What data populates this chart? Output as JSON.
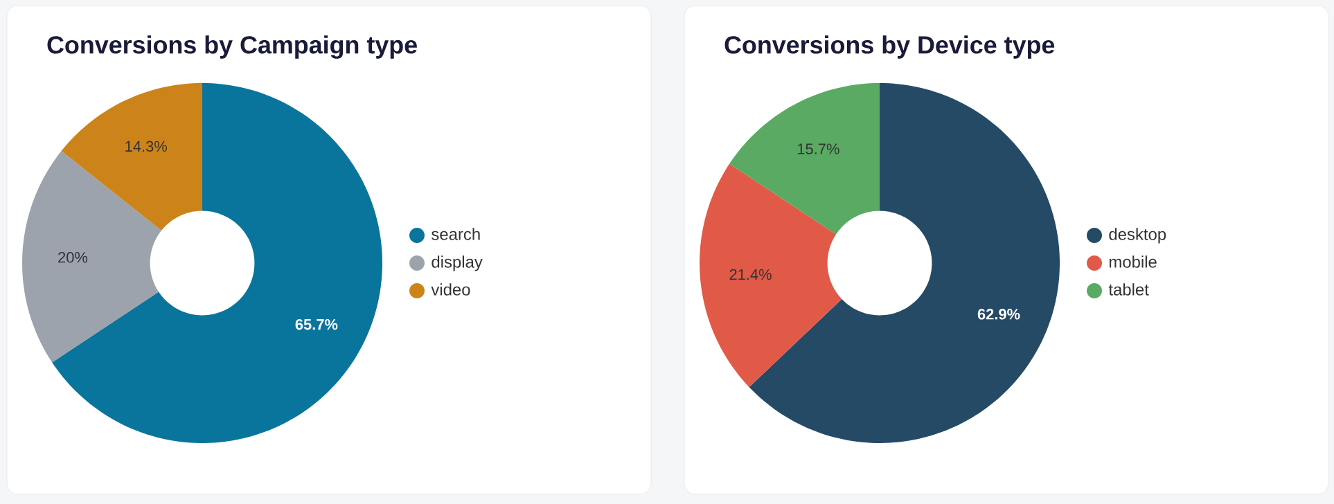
{
  "chart_data": [
    {
      "type": "donut",
      "title": "Conversions by Campaign type",
      "categories": [
        "search",
        "display",
        "video"
      ],
      "values": [
        65.7,
        20,
        14.3
      ],
      "colors": [
        "#0a759c",
        "#9ca3ad",
        "#cc841a"
      ],
      "value_labels": [
        "65.7%",
        "20%",
        "14.3%"
      ],
      "legend": "right"
    },
    {
      "type": "donut",
      "title": "Conversions by Device type",
      "categories": [
        "desktop",
        "mobile",
        "tablet"
      ],
      "values": [
        62.9,
        21.4,
        15.7
      ],
      "colors": [
        "#254a66",
        "#e05a47",
        "#5aaa63"
      ],
      "value_labels": [
        "62.9%",
        "21.4%",
        "15.7%"
      ],
      "legend": "right"
    }
  ]
}
